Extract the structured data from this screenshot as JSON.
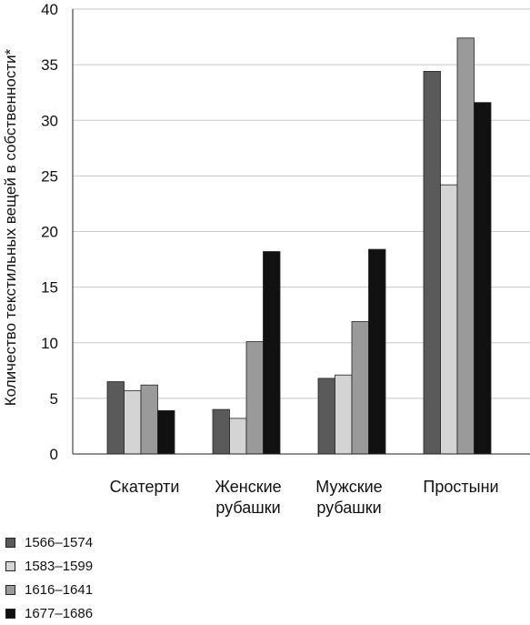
{
  "chart_data": {
    "type": "bar",
    "ylabel": "Количество текстильных вещей в собственности*",
    "ylim": [
      0,
      40
    ],
    "yticks": [
      0,
      5,
      10,
      15,
      20,
      25,
      30,
      35,
      40
    ],
    "grid": true,
    "legend_position": "bottom-left",
    "categories": [
      [
        "Скатерти"
      ],
      [
        "Женские",
        "рубашки"
      ],
      [
        "Мужские",
        "рубашки"
      ],
      [
        "Простыни"
      ]
    ],
    "series": [
      {
        "name": "1566–1574",
        "color": "#5a5a5a",
        "values": [
          6.5,
          4.0,
          6.8,
          34.4
        ]
      },
      {
        "name": "1583–1599",
        "color": "#d4d4d4",
        "values": [
          5.7,
          3.2,
          7.1,
          24.2
        ]
      },
      {
        "name": "1616–1641",
        "color": "#9a9a9a",
        "values": [
          6.2,
          10.1,
          11.9,
          37.4
        ]
      },
      {
        "name": "1677–1686",
        "color": "#111111",
        "values": [
          3.9,
          18.2,
          18.4,
          31.6
        ]
      }
    ]
  }
}
